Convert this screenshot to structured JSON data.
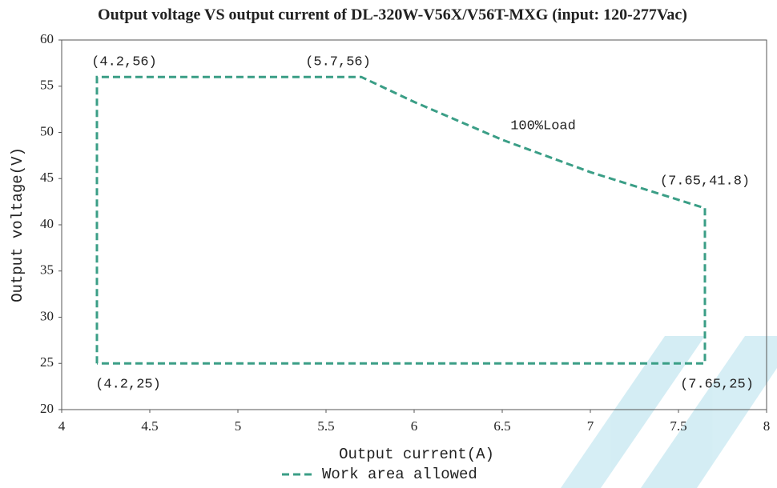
{
  "chart_data": {
    "type": "line",
    "title": "Output voltage VS output current of DL-320W-V56X/V56T-MXG (input: 120-277Vac)",
    "x_label": "Output current(A)",
    "y_label": "Output voltage(V)",
    "xlim": [
      4,
      8
    ],
    "ylim": [
      20,
      60
    ],
    "xticks": [
      4,
      4.5,
      5,
      5.5,
      6,
      6.5,
      7,
      7.5,
      8
    ],
    "yticks": [
      20,
      25,
      30,
      35,
      40,
      45,
      50,
      55,
      60
    ],
    "grid": false,
    "legend": "bottom",
    "series": [
      {
        "name": "Work area allowed",
        "color": "#3a9e86",
        "dashed": true,
        "x": [
          4.2,
          4.2,
          5.7,
          6,
          6.5,
          7,
          7.5,
          7.65,
          7.65,
          4.2
        ],
        "values": [
          25,
          56,
          56,
          53.3,
          49.2,
          45.7,
          42.7,
          41.8,
          25,
          25
        ]
      }
    ],
    "annotations": [
      "(4.2,56)",
      "(5.7,56)",
      "100%Load",
      "(7.65,41.8)",
      "(4.2,25)",
      "(7.65,25)"
    ]
  }
}
